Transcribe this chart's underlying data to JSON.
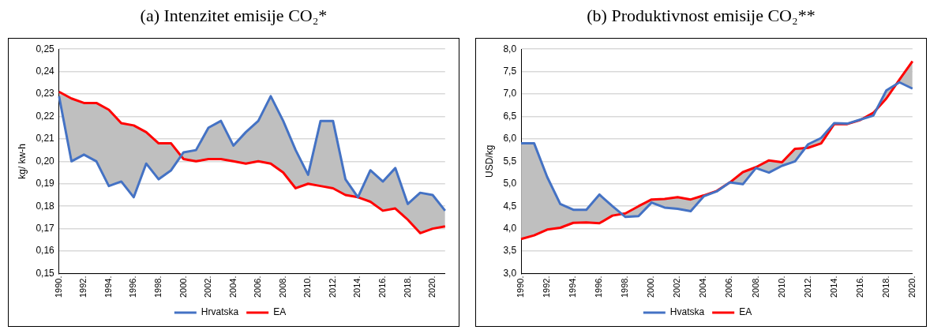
{
  "chart_data": [
    {
      "type": "line",
      "title": "(a) Intenzitet emisije CO₂*",
      "ylabel": "kg/ kw-h",
      "categories": [
        "1990.",
        null,
        "1992.",
        null,
        "1994.",
        null,
        "1996.",
        null,
        "1998.",
        null,
        "2000.",
        null,
        "2002.",
        null,
        "2004.",
        null,
        "2006.",
        null,
        "2008.",
        null,
        "2010.",
        null,
        "2012.",
        null,
        "2014.",
        null,
        "2016.",
        null,
        "2018.",
        null,
        "2020.",
        null
      ],
      "series": [
        {
          "name": "Hrvatska",
          "color": "#4472c4",
          "values": [
            0.229,
            0.2,
            0.203,
            0.2,
            0.189,
            0.191,
            0.184,
            0.199,
            0.192,
            0.196,
            0.204,
            0.205,
            0.215,
            0.218,
            0.207,
            0.213,
            0.218,
            0.229,
            0.218,
            0.205,
            0.194,
            0.218,
            0.218,
            0.192,
            0.184,
            0.196,
            0.191,
            0.197,
            0.181,
            0.186,
            0.185,
            0.178
          ]
        },
        {
          "name": "EA",
          "color": "#ff0000",
          "values": [
            0.231,
            0.228,
            0.226,
            0.226,
            0.223,
            0.217,
            0.216,
            0.213,
            0.208,
            0.208,
            0.201,
            0.2,
            0.201,
            0.201,
            0.2,
            0.199,
            0.2,
            0.199,
            0.195,
            0.188,
            0.19,
            0.189,
            0.188,
            0.185,
            0.184,
            0.182,
            0.178,
            0.179,
            0.174,
            0.168,
            0.17,
            0.171
          ]
        }
      ],
      "ylim": [
        0.15,
        0.25
      ],
      "yticks": [
        {
          "value": 0.15,
          "label": "0,15"
        },
        {
          "value": 0.16,
          "label": "0,16"
        },
        {
          "value": 0.17,
          "label": "0,17"
        },
        {
          "value": 0.18,
          "label": "0,18"
        },
        {
          "value": 0.19,
          "label": "0,19"
        },
        {
          "value": 0.2,
          "label": "0,20"
        },
        {
          "value": 0.21,
          "label": "0,21"
        },
        {
          "value": 0.22,
          "label": "0,22"
        },
        {
          "value": 0.23,
          "label": "0,23"
        },
        {
          "value": 0.24,
          "label": "0,24"
        },
        {
          "value": 0.25,
          "label": "0,25"
        }
      ],
      "grid": "y",
      "legend": "bottom",
      "marker": "none",
      "line_style": "solid"
    },
    {
      "type": "line",
      "title": "(b) Produktivnost emisije CO₂**",
      "ylabel": "USD/kg",
      "categories": [
        "1990.",
        null,
        "1992.",
        null,
        "1994.",
        null,
        "1996.",
        null,
        "1998.",
        null,
        "2000.",
        null,
        "2002.",
        null,
        "2004.",
        null,
        "2006.",
        null,
        "2008.",
        null,
        "2010.",
        null,
        "2012.",
        null,
        "2014.",
        null,
        "2016.",
        null,
        "2018.",
        null,
        "2020."
      ],
      "series": [
        {
          "name": "Hvatska",
          "color": "#4472c4",
          "values": [
            5.9,
            5.9,
            5.15,
            4.55,
            4.42,
            4.42,
            4.76,
            4.5,
            4.26,
            4.28,
            4.58,
            4.47,
            4.44,
            4.39,
            4.72,
            4.83,
            5.03,
            4.99,
            5.35,
            5.25,
            5.4,
            5.5,
            5.88,
            6.02,
            6.35,
            6.34,
            6.43,
            6.52,
            7.08,
            7.26,
            7.12
          ]
        },
        {
          "name": "EA",
          "color": "#ff0000",
          "values": [
            3.77,
            3.85,
            3.98,
            4.02,
            4.13,
            4.14,
            4.12,
            4.29,
            4.34,
            4.5,
            4.65,
            4.66,
            4.7,
            4.65,
            4.74,
            4.84,
            5.03,
            5.26,
            5.37,
            5.52,
            5.48,
            5.78,
            5.8,
            5.9,
            6.33,
            6.33,
            6.42,
            6.58,
            6.9,
            7.32,
            7.73
          ]
        }
      ],
      "ylim": [
        3,
        8
      ],
      "yticks": [
        {
          "value": 3,
          "label": "3,0"
        },
        {
          "value": 3.5,
          "label": "3,5"
        },
        {
          "value": 4,
          "label": "4,0"
        },
        {
          "value": 4.5,
          "label": "4,5"
        },
        {
          "value": 5,
          "label": "5,0"
        },
        {
          "value": 5.5,
          "label": "5,5"
        },
        {
          "value": 6,
          "label": "6,0"
        },
        {
          "value": 6.5,
          "label": "6,5"
        },
        {
          "value": 7,
          "label": "7,0"
        },
        {
          "value": 7.5,
          "label": "7,5"
        },
        {
          "value": 8,
          "label": "8,0"
        }
      ],
      "grid": "y",
      "legend": "bottom",
      "marker": "none",
      "line_style": "solid"
    }
  ]
}
